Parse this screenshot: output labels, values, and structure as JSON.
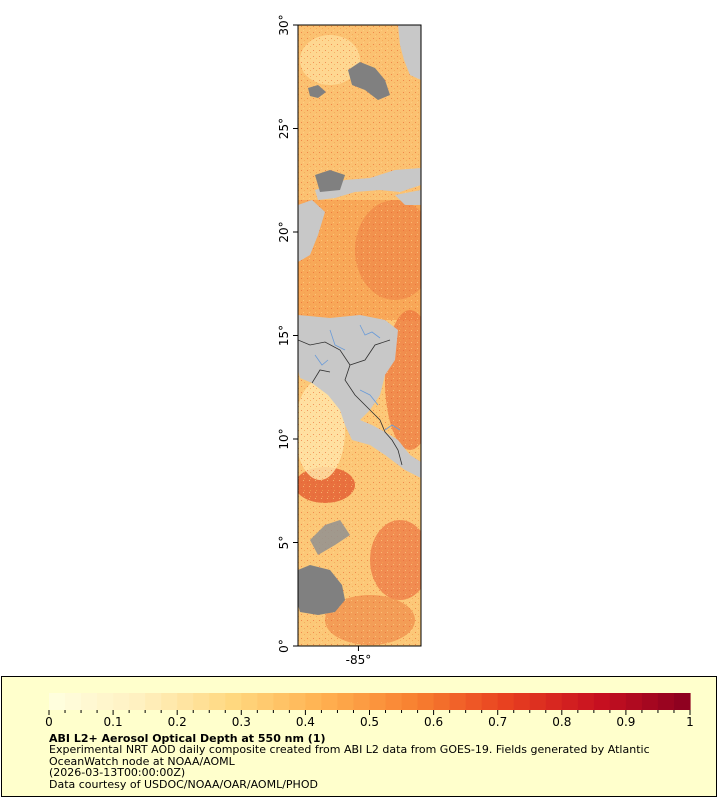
{
  "map": {
    "lat_ticks": [
      {
        "value": 30,
        "label": "30°"
      },
      {
        "value": 25,
        "label": "25°"
      },
      {
        "value": 20,
        "label": "20°"
      },
      {
        "value": 15,
        "label": "15°"
      },
      {
        "value": 10,
        "label": "10°"
      },
      {
        "value": 5,
        "label": "5°"
      },
      {
        "value": 0,
        "label": "0°"
      }
    ],
    "lon_ticks": [
      {
        "value": -85,
        "label": "-85°"
      }
    ],
    "colors": {
      "land": "#c8c8c8",
      "no_data": "#808080",
      "borders": "#303030",
      "rivers": "#6a9bd8"
    }
  },
  "legend": {
    "colorbar": {
      "min": 0,
      "max": 1,
      "stops": [
        "#ffffe0",
        "#fff0c0",
        "#ffd880",
        "#ffb050",
        "#f88030",
        "#e84020",
        "#c81020",
        "#8a0020"
      ],
      "tick_labels": [
        "0",
        "0.1",
        "0.2",
        "0.3",
        "0.4",
        "0.5",
        "0.6",
        "0.7",
        "0.8",
        "0.9",
        "1"
      ]
    },
    "title": "ABI L2+ Aerosol Optical Depth at 550 nm (1)",
    "description_line1": "Experimental NRT AOD daily composite created from ABI L2 data from GOES-19. Fields generated by Atlantic",
    "description_line2": "OceanWatch node at NOAA/AOML",
    "date": "(2026-03-13T00:00:00Z)",
    "credit": "Data courtesy of USDOC/NOAA/OAR/AOML/PHOD"
  }
}
